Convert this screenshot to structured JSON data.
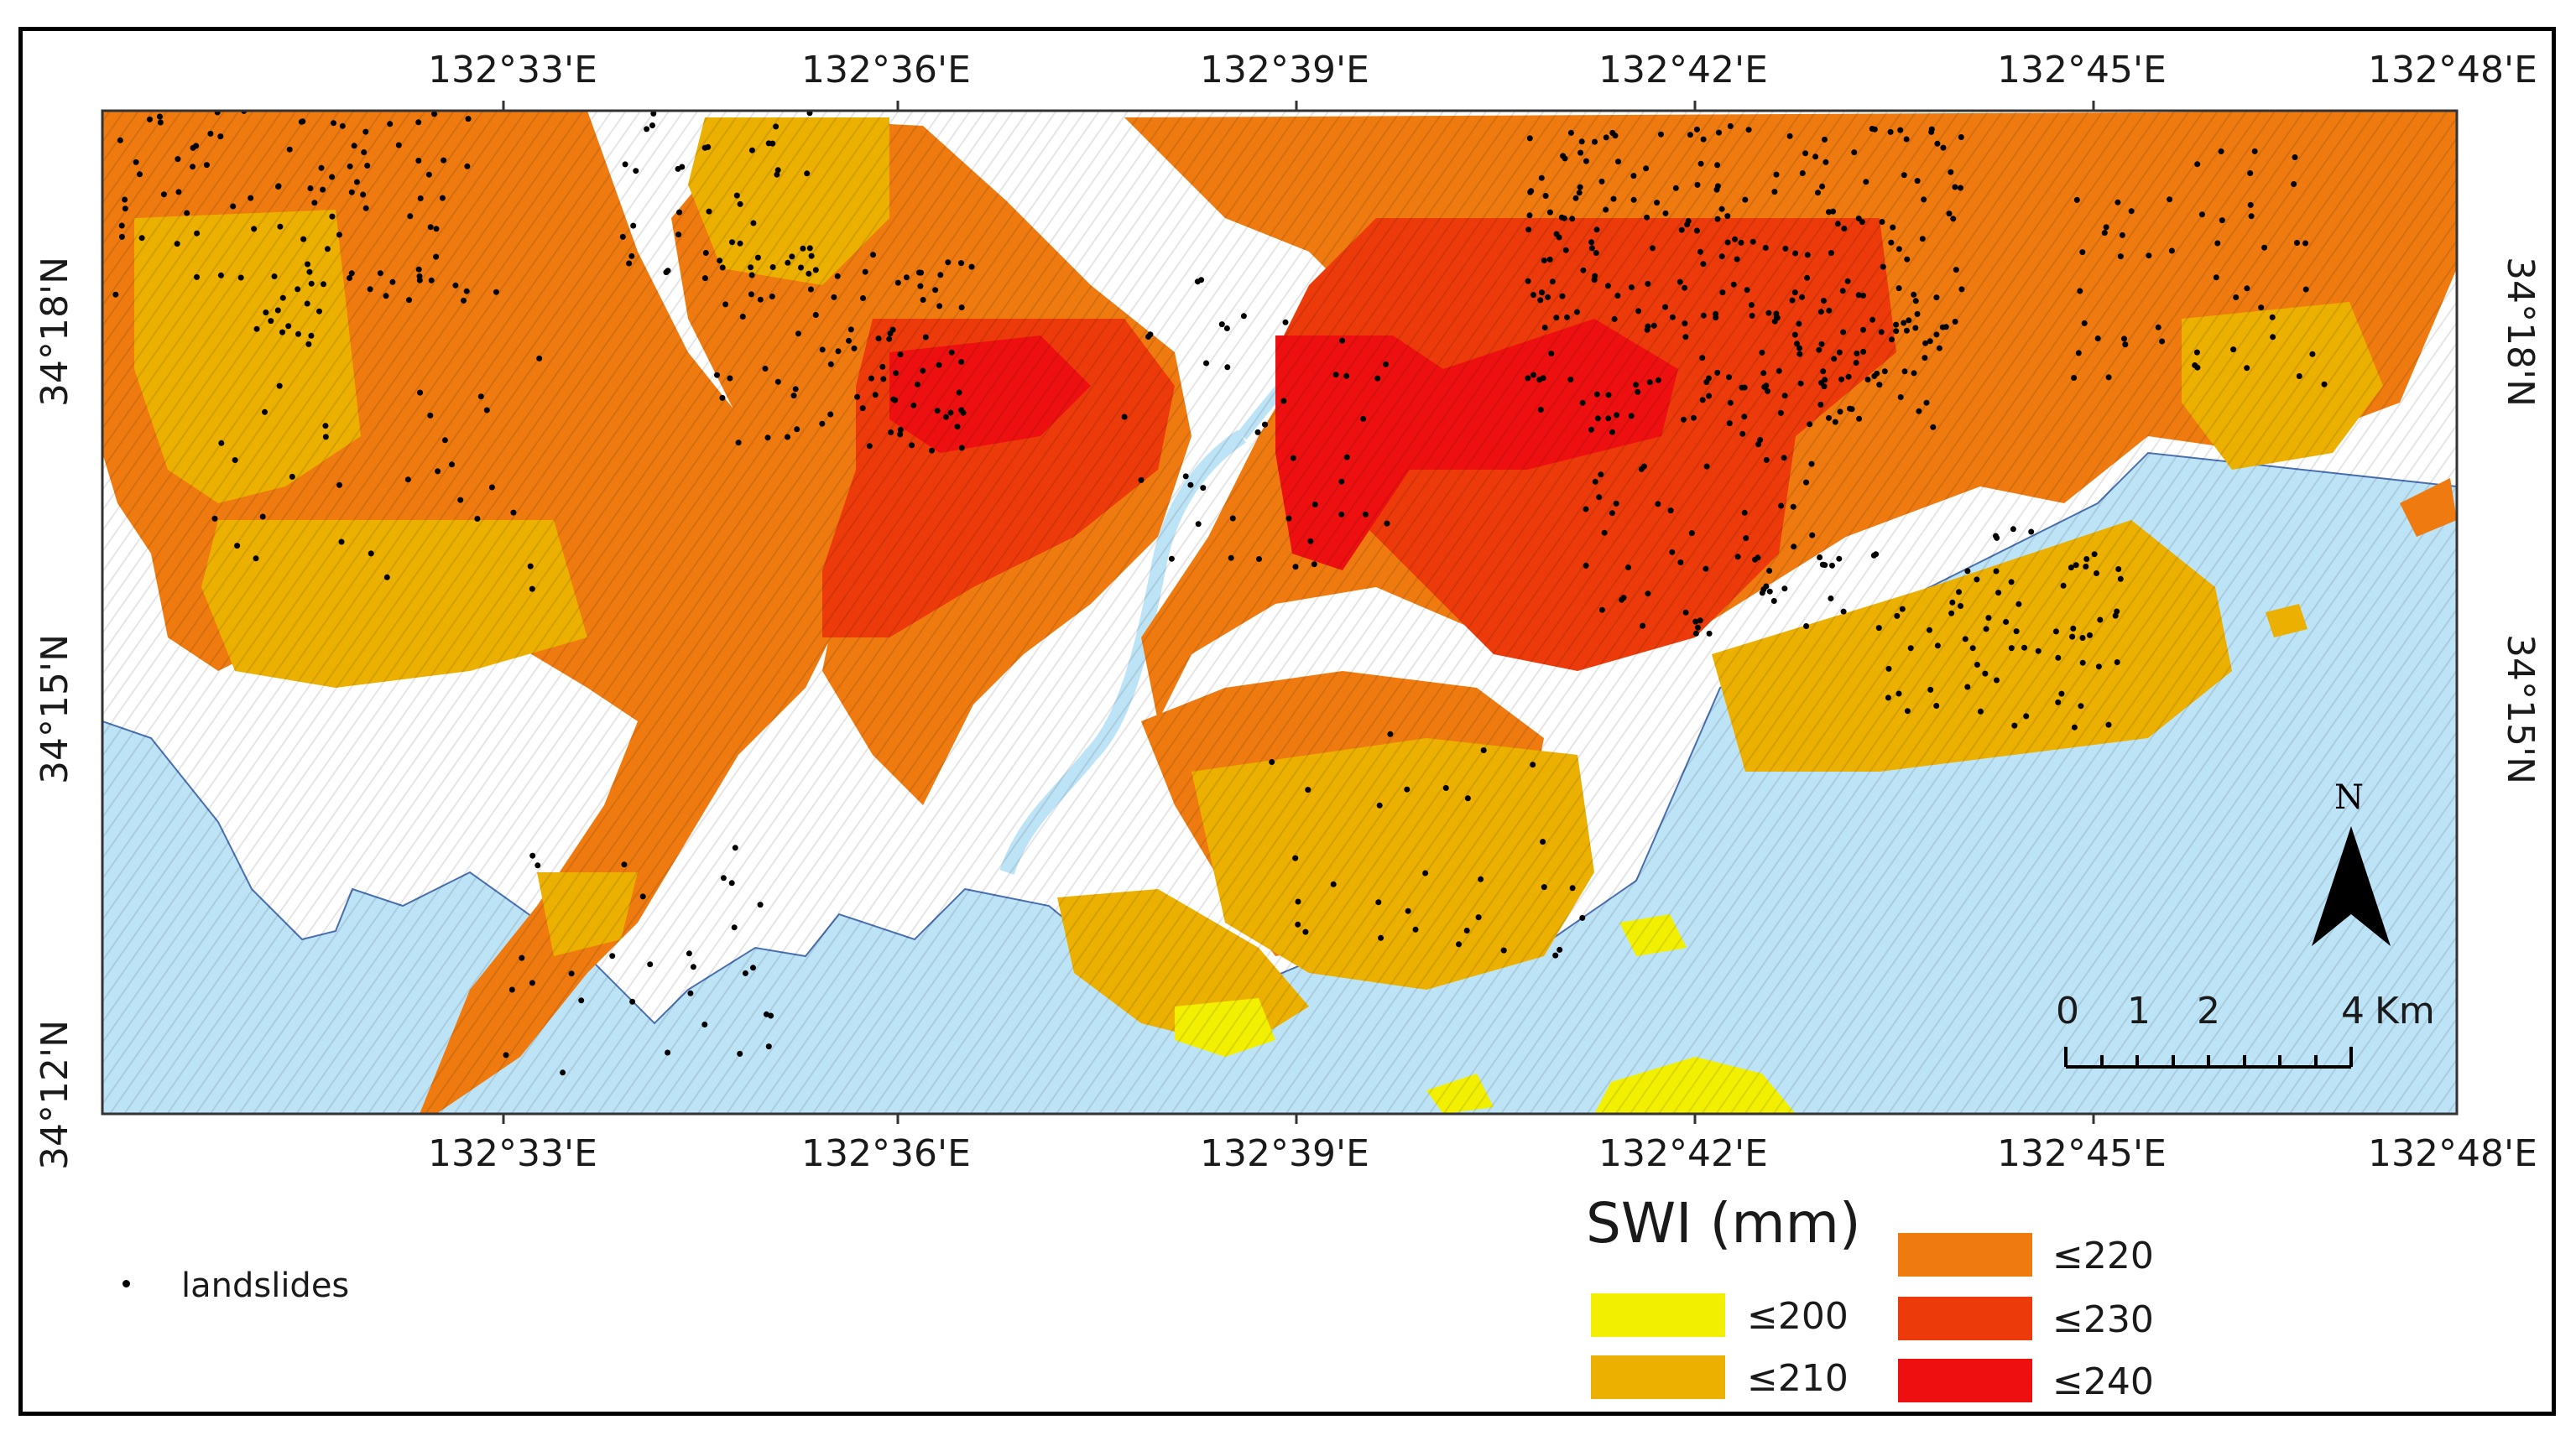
{
  "map": {
    "lon_labels": [
      "132°33'E",
      "132°36'E",
      "132°39'E",
      "132°42'E",
      "132°45'E",
      "132°48'E"
    ],
    "lat_labels": [
      "34°18'N",
      "34°15'N",
      "34°12'N"
    ],
    "north_label": "N",
    "scale_bar": {
      "labels": [
        "0",
        "1",
        "2",
        "4"
      ],
      "unit": "Km"
    }
  },
  "legend": {
    "title": "SWI (mm)",
    "classes": [
      {
        "label": "≤200",
        "color": "#f2f000"
      },
      {
        "label": "≤210",
        "color": "#ebb000"
      },
      {
        "label": "≤220",
        "color": "#ee7a10"
      },
      {
        "label": "≤230",
        "color": "#ec3a0a"
      },
      {
        "label": "≤240",
        "color": "#ee1010"
      }
    ],
    "points_label": "landslides"
  },
  "colors": {
    "water": "#bde3f7",
    "lowland": "#ffffff",
    "coast_outline": "#4a6fb0"
  }
}
